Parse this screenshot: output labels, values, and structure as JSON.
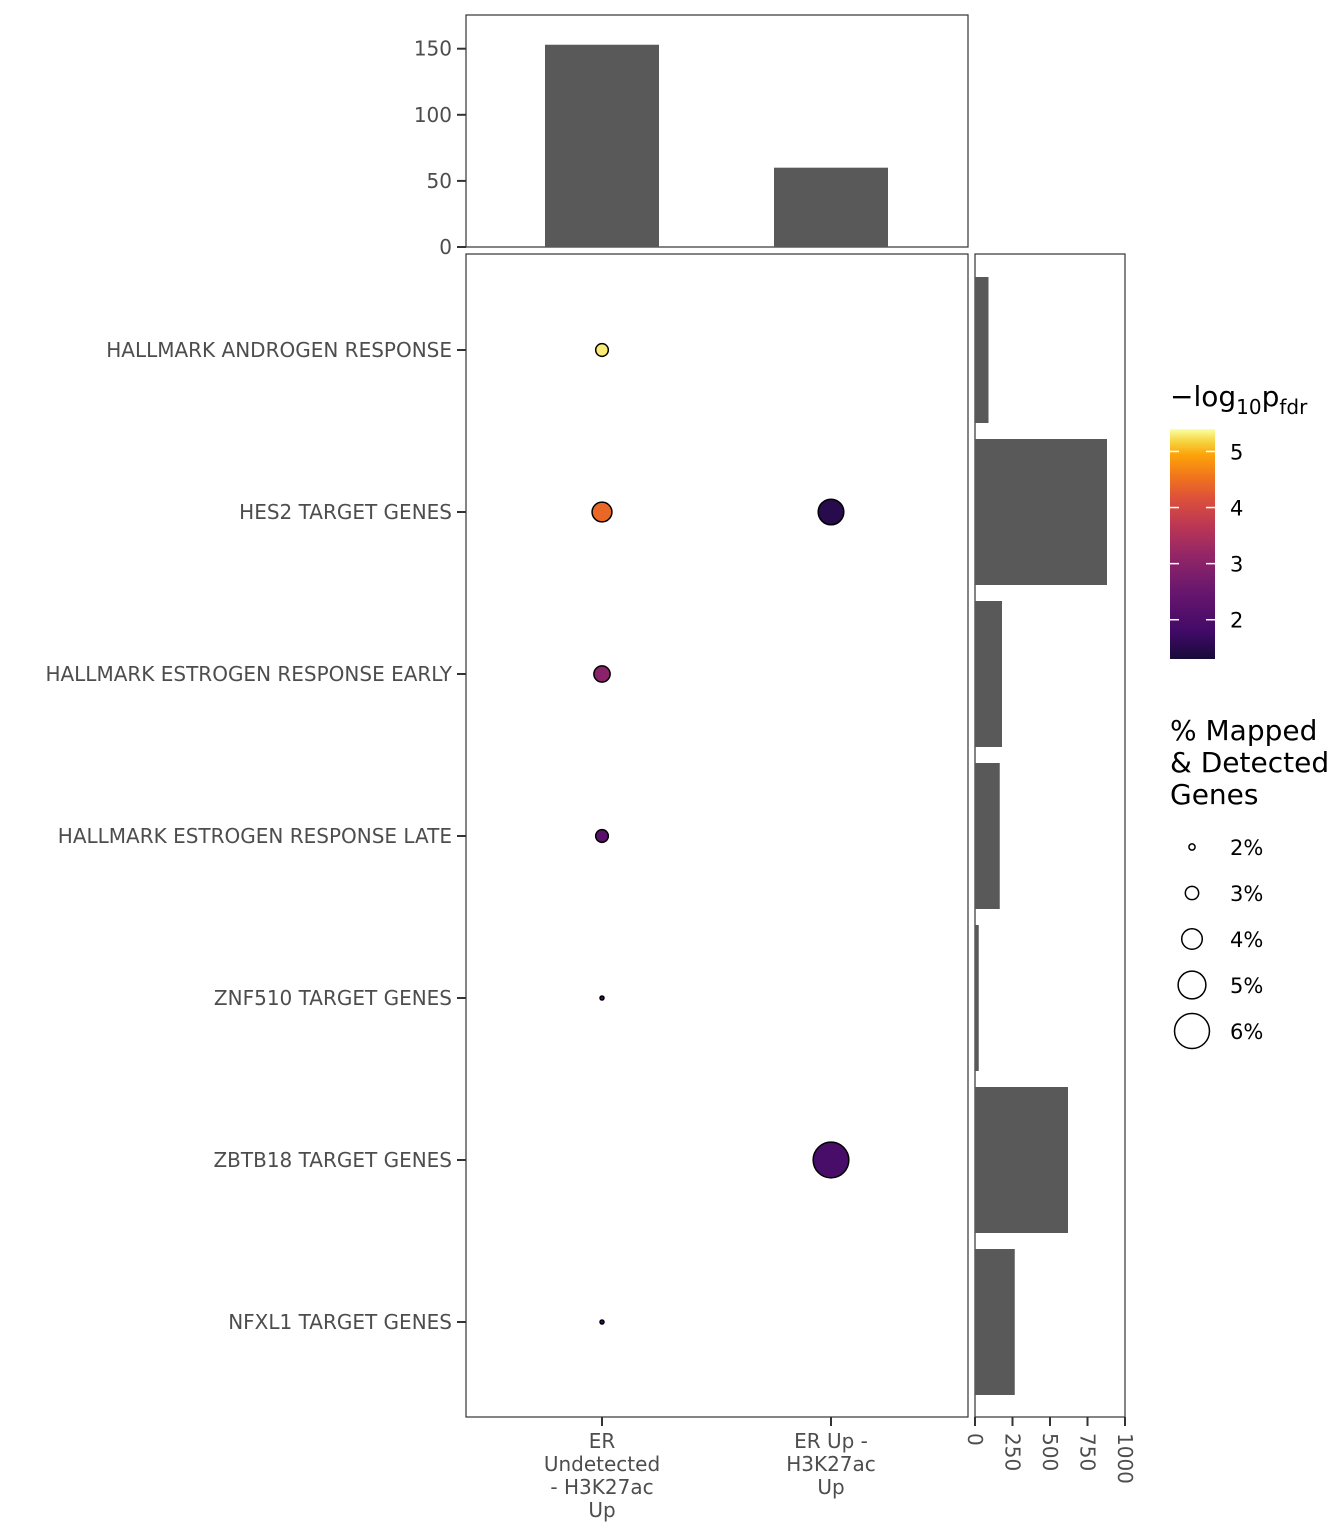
{
  "chart_data": [
    {
      "panel": "top-bar",
      "type": "bar",
      "categories": [
        "ER Undetected - H3K27ac Up",
        "ER Up - H3K27ac Up"
      ],
      "values": [
        153,
        60
      ],
      "ylim": [
        0,
        175
      ],
      "yticks": [
        0,
        50,
        100,
        150
      ],
      "grid": false
    },
    {
      "panel": "main-dot",
      "type": "scatter",
      "x_categories": [
        {
          "lines": [
            "ER",
            "Undetected",
            "- H3K27ac",
            "Up"
          ]
        },
        {
          "lines": [
            "ER Up -",
            "H3K27ac",
            "Up"
          ]
        }
      ],
      "y_categories": [
        "HALLMARK ANDROGEN RESPONSE",
        "HES2 TARGET GENES",
        "HALLMARK ESTROGEN RESPONSE EARLY",
        "HALLMARK ESTROGEN RESPONSE LATE",
        "ZNF510 TARGET GENES",
        "ZBTB18 TARGET GENES",
        "NFXL1 TARGET GENES"
      ],
      "points": [
        {
          "x": 0,
          "y": 0,
          "neglog10_pfdr": 5.3,
          "pct_mapped": 2.9
        },
        {
          "x": 0,
          "y": 1,
          "neglog10_pfdr": 4.4,
          "pct_mapped": 3.9
        },
        {
          "x": 1,
          "y": 1,
          "neglog10_pfdr": 1.5,
          "pct_mapped": 4.7
        },
        {
          "x": 0,
          "y": 2,
          "neglog10_pfdr": 3.0,
          "pct_mapped": 3.4
        },
        {
          "x": 0,
          "y": 3,
          "neglog10_pfdr": 2.2,
          "pct_mapped": 2.9
        },
        {
          "x": 0,
          "y": 4,
          "neglog10_pfdr": 1.8,
          "pct_mapped": 1.7
        },
        {
          "x": 1,
          "y": 5,
          "neglog10_pfdr": 1.9,
          "pct_mapped": 6.1
        },
        {
          "x": 0,
          "y": 6,
          "neglog10_pfdr": 1.8,
          "pct_mapped": 1.7
        }
      ],
      "grid": false
    },
    {
      "panel": "side-bar",
      "type": "bar",
      "orientation": "horizontal",
      "categories": [
        "HALLMARK ANDROGEN RESPONSE",
        "HES2 TARGET GENES",
        "HALLMARK ESTROGEN RESPONSE EARLY",
        "HALLMARK ESTROGEN RESPONSE LATE",
        "ZNF510 TARGET GENES",
        "ZBTB18 TARGET GENES",
        "NFXL1 TARGET GENES"
      ],
      "values": [
        90,
        880,
        180,
        165,
        25,
        620,
        265
      ],
      "xlim": [
        0,
        1000
      ],
      "xticks": [
        "0",
        "250",
        "500",
        "750",
        "1000"
      ],
      "grid": false
    }
  ],
  "legend": {
    "color": {
      "title_main": "−log",
      "title_sub": "10",
      "title_p": "p",
      "title_p_sub": "fdr",
      "range": [
        1.3,
        5.4
      ],
      "ticks": [
        "5",
        "4",
        "3",
        "2"
      ],
      "tick_values": [
        5,
        4,
        3,
        2
      ],
      "palette": [
        "#000004",
        "#3b0f70",
        "#8c2981",
        "#de4968",
        "#fe9f6d",
        "#fcfdbf"
      ]
    },
    "size": {
      "title_lines": [
        "% Mapped",
        "& Detected",
        "Genes"
      ],
      "items": [
        "2%",
        "3%",
        "4%",
        "5%",
        "6%"
      ],
      "item_values": [
        2,
        3,
        4,
        5,
        6
      ]
    }
  },
  "colors": {
    "bar": "#595959",
    "panel_border": "#333333",
    "tick": "#333333",
    "tick_text": "#4d4d4d"
  }
}
